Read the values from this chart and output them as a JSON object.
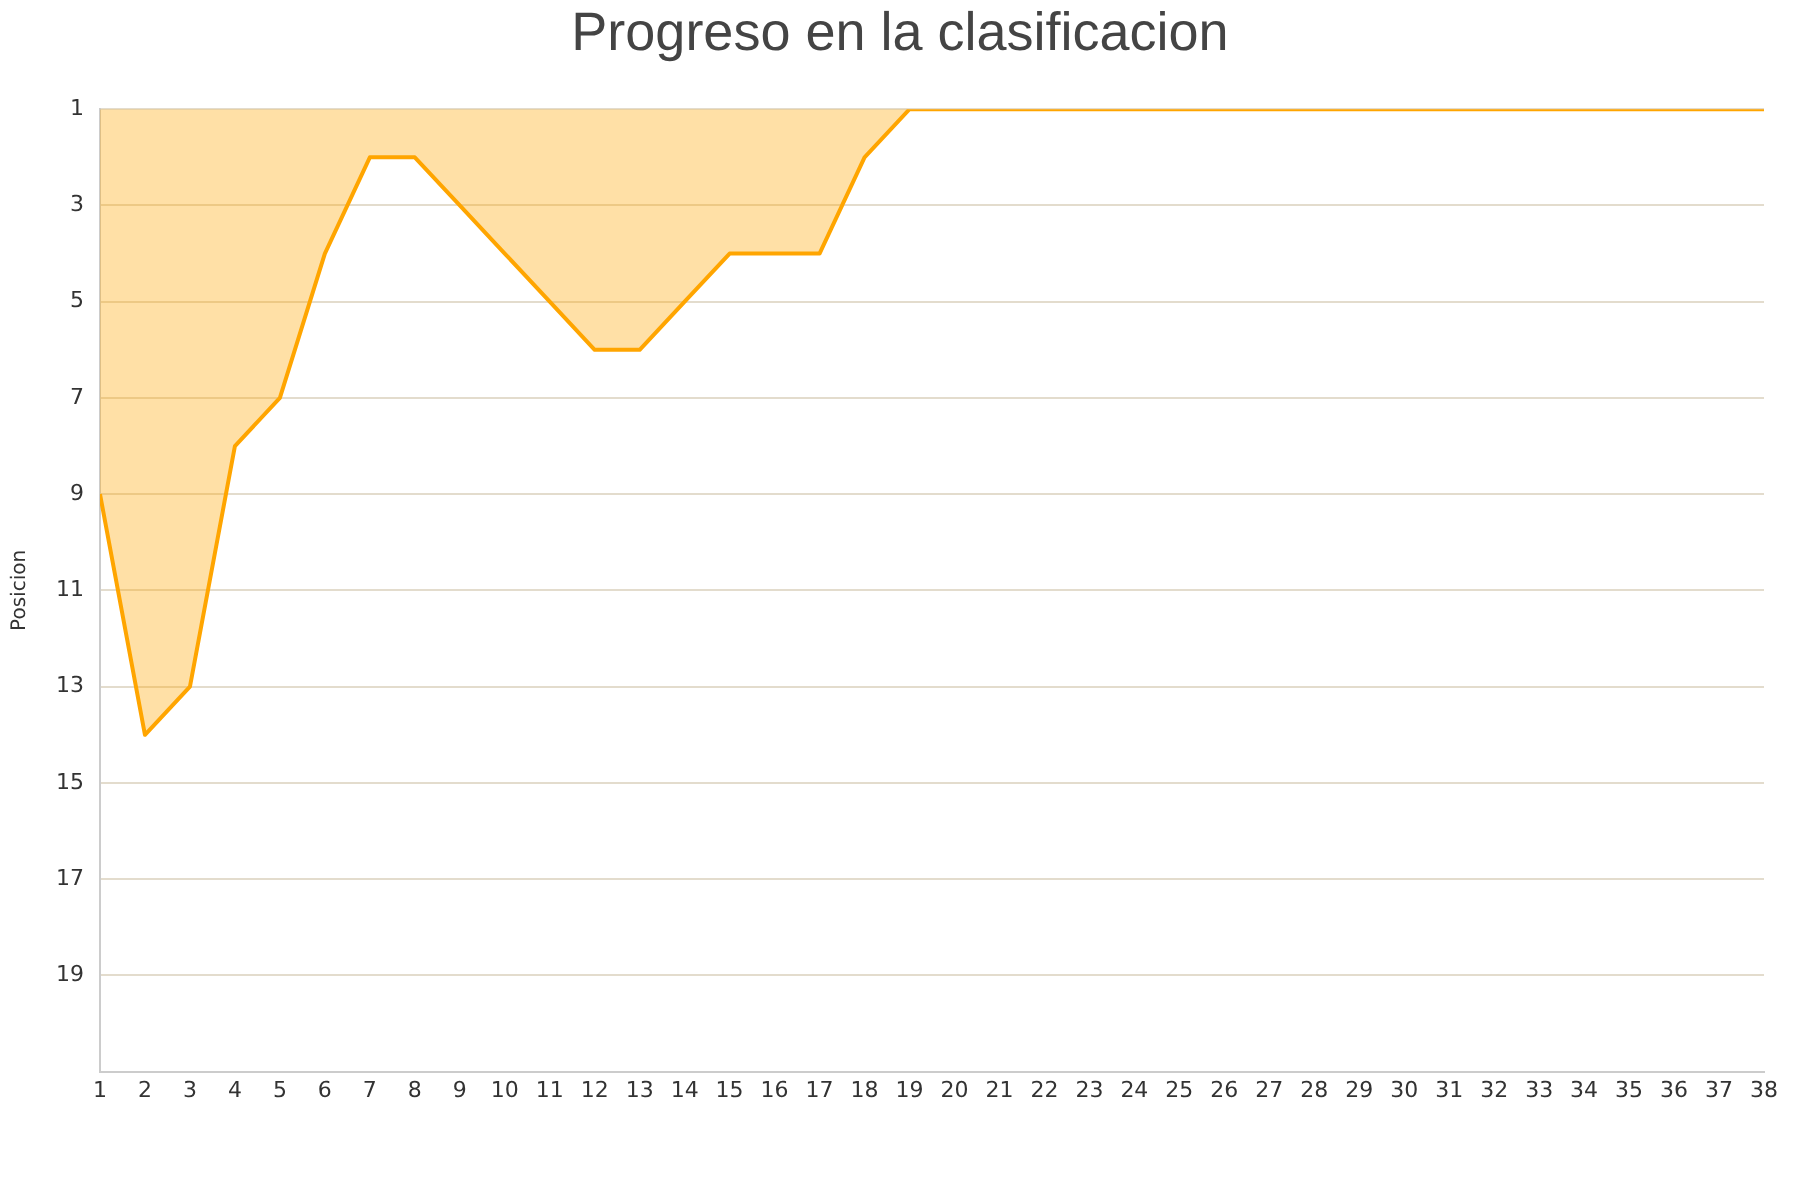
{
  "chart_data": {
    "type": "area",
    "title": "Progreso en la clasificacion",
    "ylabel": "Posicion",
    "x": [
      1,
      2,
      3,
      4,
      5,
      6,
      7,
      8,
      9,
      10,
      11,
      12,
      13,
      14,
      15,
      16,
      17,
      18,
      19,
      20,
      21,
      22,
      23,
      24,
      25,
      26,
      27,
      28,
      29,
      30,
      31,
      32,
      33,
      34,
      35,
      36,
      37,
      38
    ],
    "series": [
      {
        "color": "#ffa500",
        "values": [
          9,
          14,
          13,
          8,
          7,
          4,
          2,
          2,
          3,
          4,
          5,
          6,
          6,
          5,
          4,
          4,
          4,
          2,
          1,
          1,
          1,
          1,
          1,
          1,
          1,
          1,
          1,
          1,
          1,
          1,
          1,
          1,
          1,
          1,
          1,
          1,
          1,
          1
        ]
      }
    ],
    "xlim": [
      1,
      38
    ],
    "xticks": [
      1,
      2,
      3,
      4,
      5,
      6,
      7,
      8,
      9,
      10,
      11,
      12,
      13,
      14,
      15,
      16,
      17,
      18,
      19,
      20,
      21,
      22,
      23,
      24,
      25,
      26,
      27,
      28,
      29,
      30,
      31,
      32,
      33,
      34,
      35,
      36,
      37,
      38
    ],
    "ylim": [
      21,
      1
    ],
    "yticks": [
      1,
      3,
      5,
      7,
      9,
      11,
      13,
      15,
      17,
      19
    ],
    "grid": "y",
    "legend": false
  }
}
